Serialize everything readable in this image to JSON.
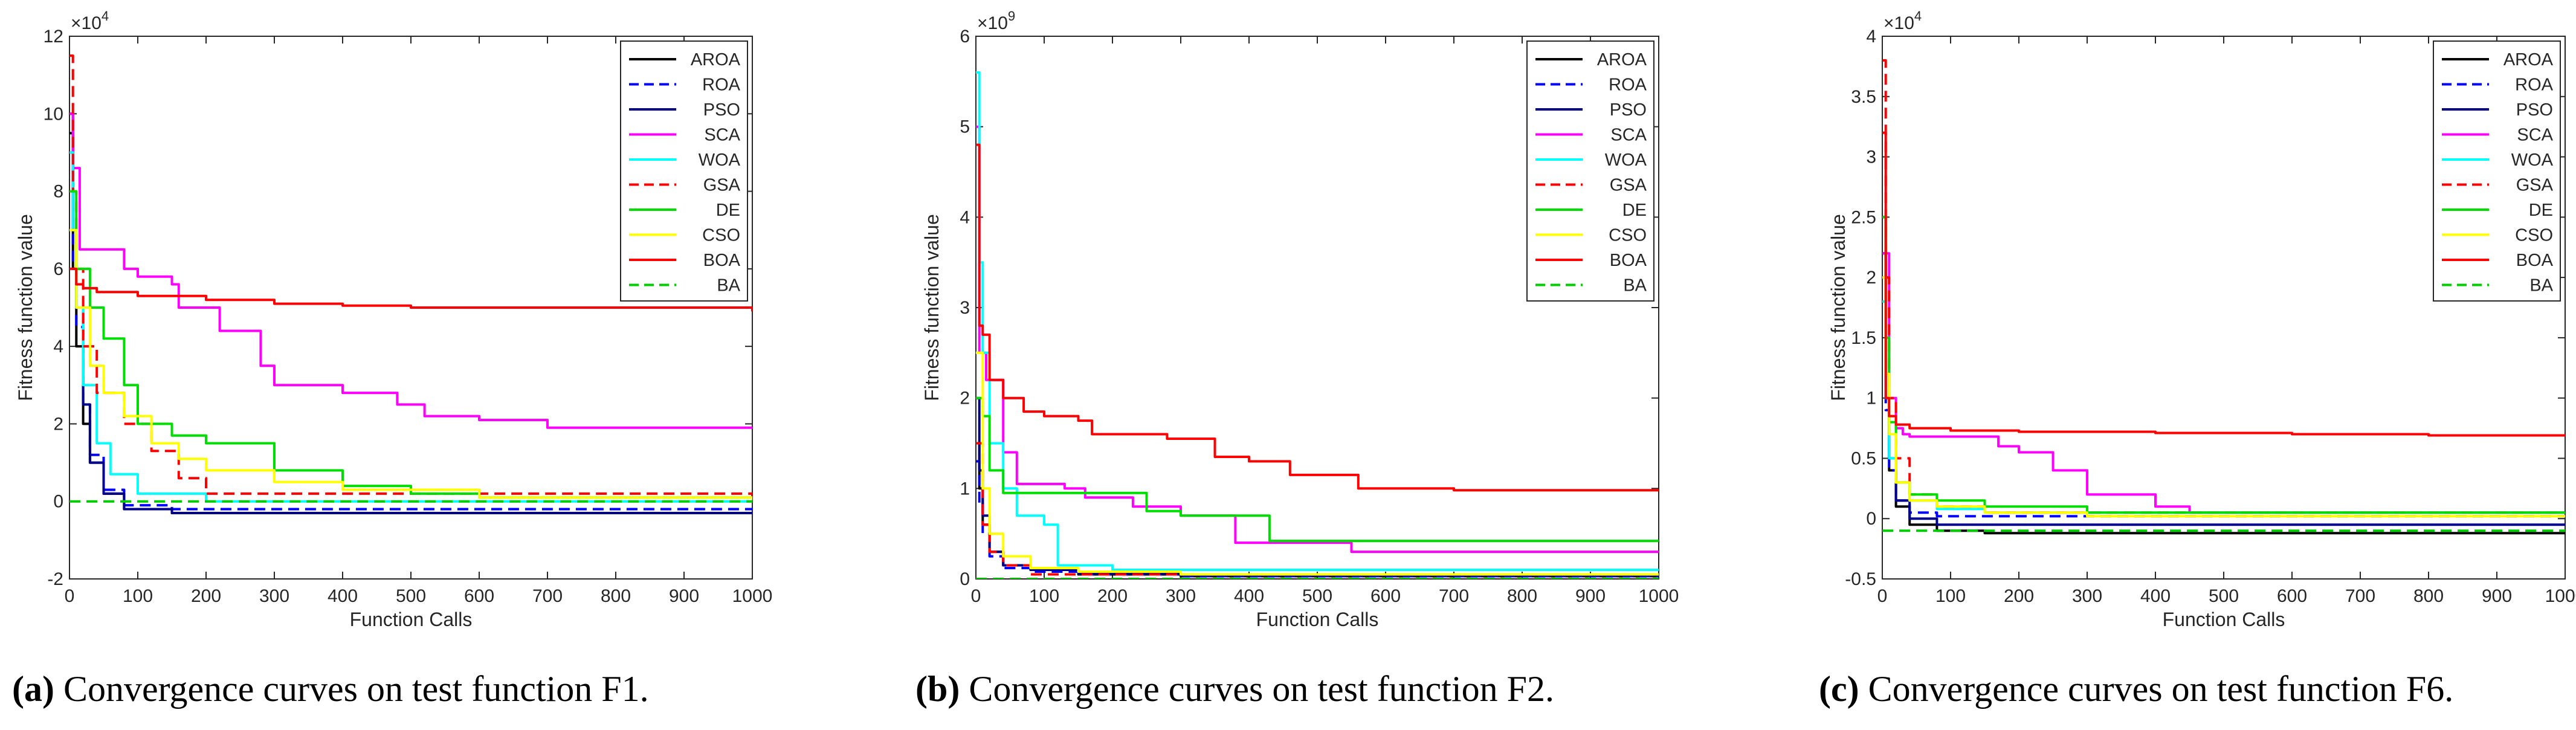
{
  "legend_items": [
    {
      "label": "AROA",
      "color": "#000000",
      "dash": false
    },
    {
      "label": "ROA",
      "color": "#0000ff",
      "dash": true
    },
    {
      "label": "PSO",
      "color": "#00008b",
      "dash": false
    },
    {
      "label": "SCA",
      "color": "#ff00ff",
      "dash": false
    },
    {
      "label": "WOA",
      "color": "#00ffff",
      "dash": false
    },
    {
      "label": "GSA",
      "color": "#ff0000",
      "dash": true
    },
    {
      "label": "DE",
      "color": "#00dd00",
      "dash": false
    },
    {
      "label": "CSO",
      "color": "#ffff00",
      "dash": false
    },
    {
      "label": "BOA",
      "color": "#ff0000",
      "dash": false
    },
    {
      "label": "BA",
      "color": "#00cc00",
      "dash": true
    }
  ],
  "captions": [
    {
      "tag": "(a)",
      "text": " Convergence curves on test function F1."
    },
    {
      "tag": "(b)",
      "text": " Convergence curves on test function F2."
    },
    {
      "tag": "(c)",
      "text": " Convergence curves on test function F6."
    }
  ],
  "chart_data": [
    {
      "type": "line",
      "xlabel": "Function Calls",
      "ylabel": "Fitness function value",
      "exponent_label": "×10^4",
      "xlim": [
        0,
        1000
      ],
      "ylim": [
        -2,
        12
      ],
      "xticks": [
        0,
        100,
        200,
        300,
        400,
        500,
        600,
        700,
        800,
        900,
        1000
      ],
      "yticks": [
        -2,
        0,
        2,
        4,
        6,
        8,
        10,
        12
      ],
      "legend_position": "top-right",
      "series": [
        {
          "name": "AROA",
          "x": [
            0,
            5,
            10,
            20,
            30,
            50,
            80,
            150,
            1000
          ],
          "y": [
            9.5,
            6,
            4,
            2,
            1,
            0.2,
            -0.2,
            -0.3,
            -0.3
          ]
        },
        {
          "name": "ROA",
          "x": [
            0,
            5,
            10,
            20,
            30,
            50,
            80,
            150,
            1000
          ],
          "y": [
            9,
            6,
            4.5,
            2.5,
            1.2,
            0.3,
            -0.1,
            -0.2,
            -0.2
          ]
        },
        {
          "name": "PSO",
          "x": [
            0,
            5,
            10,
            20,
            30,
            50,
            80,
            150,
            1000
          ],
          "y": [
            10,
            7,
            5,
            2.5,
            1,
            0.2,
            -0.2,
            -0.3,
            -0.3
          ]
        },
        {
          "name": "SCA",
          "x": [
            0,
            5,
            15,
            30,
            80,
            100,
            150,
            160,
            220,
            280,
            300,
            400,
            480,
            520,
            600,
            700,
            1000
          ],
          "y": [
            10,
            8.6,
            6.5,
            6.5,
            6,
            5.8,
            5.6,
            5,
            4.4,
            3.5,
            3,
            2.8,
            2.5,
            2.2,
            2.1,
            1.9,
            1.9
          ]
        },
        {
          "name": "WOA",
          "x": [
            0,
            5,
            10,
            20,
            40,
            60,
            100,
            200,
            1000
          ],
          "y": [
            9,
            7,
            5,
            3,
            1.5,
            0.7,
            0.2,
            0,
            0
          ]
        },
        {
          "name": "GSA",
          "x": [
            0,
            5,
            10,
            20,
            40,
            80,
            120,
            160,
            200,
            1000
          ],
          "y": [
            11.5,
            8,
            6,
            4,
            2.8,
            2,
            1.3,
            0.6,
            0.2,
            0
          ]
        },
        {
          "name": "DE",
          "x": [
            0,
            10,
            30,
            50,
            80,
            100,
            150,
            200,
            300,
            400,
            500,
            600,
            1000
          ],
          "y": [
            8,
            6,
            5,
            4.2,
            3,
            2,
            1.7,
            1.5,
            0.8,
            0.4,
            0.2,
            0.1,
            0
          ]
        },
        {
          "name": "CSO",
          "x": [
            0,
            10,
            30,
            50,
            80,
            120,
            160,
            200,
            300,
            400,
            600,
            1000
          ],
          "y": [
            7,
            5,
            3.5,
            2.8,
            2.2,
            1.5,
            1.1,
            0.8,
            0.5,
            0.3,
            0.1,
            0
          ]
        },
        {
          "name": "BOA",
          "x": [
            0,
            10,
            20,
            40,
            100,
            200,
            300,
            400,
            500,
            600,
            800,
            1000
          ],
          "y": [
            6,
            5.6,
            5.5,
            5.4,
            5.3,
            5.2,
            5.1,
            5.05,
            5,
            5,
            5,
            4.9
          ]
        },
        {
          "name": "BA",
          "x": [
            0,
            1000
          ],
          "y": [
            0,
            0
          ]
        }
      ]
    },
    {
      "type": "line",
      "xlabel": "Function Calls",
      "ylabel": "Fitness function value",
      "exponent_label": "×10^9",
      "xlim": [
        0,
        1000
      ],
      "ylim": [
        0,
        6
      ],
      "xticks": [
        0,
        100,
        200,
        300,
        400,
        500,
        600,
        700,
        800,
        900,
        1000
      ],
      "yticks": [
        0,
        1,
        2,
        3,
        4,
        5,
        6
      ],
      "legend_position": "top-right",
      "series": [
        {
          "name": "AROA",
          "x": [
            0,
            5,
            10,
            20,
            40,
            80,
            150,
            300,
            1000
          ],
          "y": [
            1.5,
            1,
            0.6,
            0.3,
            0.15,
            0.1,
            0.05,
            0.03,
            0.02
          ]
        },
        {
          "name": "ROA",
          "x": [
            0,
            5,
            10,
            20,
            40,
            80,
            150,
            300,
            1000
          ],
          "y": [
            1.3,
            0.8,
            0.5,
            0.25,
            0.12,
            0.08,
            0.05,
            0.03,
            0.02
          ]
        },
        {
          "name": "PSO",
          "x": [
            0,
            5,
            10,
            20,
            40,
            80,
            150,
            300,
            1000
          ],
          "y": [
            2,
            1.2,
            0.7,
            0.3,
            0.15,
            0.1,
            0.06,
            0.04,
            0.04
          ]
        },
        {
          "name": "SCA",
          "x": [
            0,
            5,
            15,
            40,
            60,
            130,
            160,
            230,
            300,
            380,
            550,
            1000
          ],
          "y": [
            5,
            2.5,
            2.2,
            1.4,
            1.05,
            1,
            0.9,
            0.8,
            0.7,
            0.4,
            0.3,
            0.3
          ]
        },
        {
          "name": "WOA",
          "x": [
            0,
            5,
            10,
            20,
            40,
            60,
            100,
            120,
            200,
            1000
          ],
          "y": [
            5.6,
            3.5,
            2.5,
            1.5,
            1,
            0.7,
            0.6,
            0.15,
            0.1,
            0.1
          ]
        },
        {
          "name": "GSA",
          "x": [
            0,
            10,
            20,
            40,
            80,
            1000
          ],
          "y": [
            1.5,
            0.6,
            0.3,
            0.15,
            0.05,
            0.05
          ]
        },
        {
          "name": "DE",
          "x": [
            0,
            10,
            20,
            40,
            100,
            250,
            300,
            430,
            1000
          ],
          "y": [
            2,
            1.8,
            1.2,
            0.95,
            0.95,
            0.75,
            0.7,
            0.42,
            0.42
          ]
        },
        {
          "name": "CSO",
          "x": [
            0,
            10,
            20,
            40,
            80,
            150,
            300,
            1000
          ],
          "y": [
            2.5,
            1,
            0.5,
            0.25,
            0.12,
            0.08,
            0.05,
            0.05
          ]
        },
        {
          "name": "BOA",
          "x": [
            0,
            5,
            10,
            20,
            40,
            70,
            100,
            150,
            170,
            280,
            350,
            400,
            460,
            560,
            700,
            1000
          ],
          "y": [
            4.8,
            2.8,
            2.7,
            2.2,
            2,
            1.85,
            1.8,
            1.75,
            1.6,
            1.55,
            1.35,
            1.3,
            1.15,
            1,
            0.98,
            0.98
          ]
        },
        {
          "name": "BA",
          "x": [
            0,
            1000
          ],
          "y": [
            0,
            0
          ]
        }
      ]
    },
    {
      "type": "line",
      "xlabel": "Function Calls",
      "ylabel": "Fitness function value",
      "exponent_label": "×10^4",
      "xlim": [
        0,
        1000
      ],
      "ylim": [
        -0.5,
        4
      ],
      "xticks": [
        0,
        100,
        200,
        300,
        400,
        500,
        600,
        700,
        800,
        900,
        1000
      ],
      "yticks": [
        -0.5,
        0,
        0.5,
        1,
        1.5,
        2,
        2.5,
        3,
        3.5,
        4
      ],
      "legend_position": "top-right",
      "series": [
        {
          "name": "AROA",
          "x": [
            0,
            5,
            10,
            20,
            40,
            80,
            150,
            1000
          ],
          "y": [
            2.2,
            1,
            0.4,
            0.1,
            -0.05,
            -0.1,
            -0.12,
            -0.12
          ]
        },
        {
          "name": "ROA",
          "x": [
            0,
            5,
            10,
            20,
            40,
            80,
            150,
            1000
          ],
          "y": [
            2,
            0.9,
            0.4,
            0.15,
            0.05,
            0.02,
            0.02,
            0.02
          ]
        },
        {
          "name": "PSO",
          "x": [
            0,
            5,
            10,
            20,
            40,
            80,
            150,
            1000
          ],
          "y": [
            2.5,
            1.2,
            0.5,
            0.15,
            0,
            -0.05,
            -0.05,
            -0.05
          ]
        },
        {
          "name": "SCA",
          "x": [
            0,
            5,
            10,
            20,
            30,
            40,
            170,
            200,
            250,
            300,
            400,
            450,
            1000
          ],
          "y": [
            2.2,
            2.2,
            1,
            0.75,
            0.7,
            0.68,
            0.6,
            0.55,
            0.4,
            0.2,
            0.1,
            0.05,
            0.05
          ]
        },
        {
          "name": "WOA",
          "x": [
            0,
            5,
            10,
            20,
            40,
            80,
            150,
            1000
          ],
          "y": [
            1.8,
            1,
            0.5,
            0.3,
            0.15,
            0.08,
            0.05,
            0.05
          ]
        },
        {
          "name": "GSA",
          "x": [
            0,
            5,
            10,
            20,
            40,
            80,
            150,
            1000
          ],
          "y": [
            3.8,
            2,
            1,
            0.5,
            0.2,
            0.1,
            0.05,
            0.05
          ]
        },
        {
          "name": "DE",
          "x": [
            0,
            5,
            10,
            20,
            40,
            80,
            150,
            300,
            1000
          ],
          "y": [
            2.5,
            1.5,
            0.8,
            0.3,
            0.2,
            0.15,
            0.1,
            0.05,
            0.05
          ]
        },
        {
          "name": "CSO",
          "x": [
            0,
            5,
            10,
            20,
            40,
            80,
            150,
            300,
            1000
          ],
          "y": [
            2,
            1.2,
            0.7,
            0.3,
            0.15,
            0.1,
            0.05,
            0.02,
            0.02
          ]
        },
        {
          "name": "BOA",
          "x": [
            0,
            5,
            10,
            20,
            40,
            100,
            200,
            400,
            600,
            800,
            1000
          ],
          "y": [
            3.2,
            1,
            0.85,
            0.78,
            0.75,
            0.73,
            0.72,
            0.71,
            0.7,
            0.69,
            0.68
          ]
        },
        {
          "name": "BA",
          "x": [
            0,
            1000
          ],
          "y": [
            -0.1,
            -0.1
          ]
        }
      ]
    }
  ]
}
